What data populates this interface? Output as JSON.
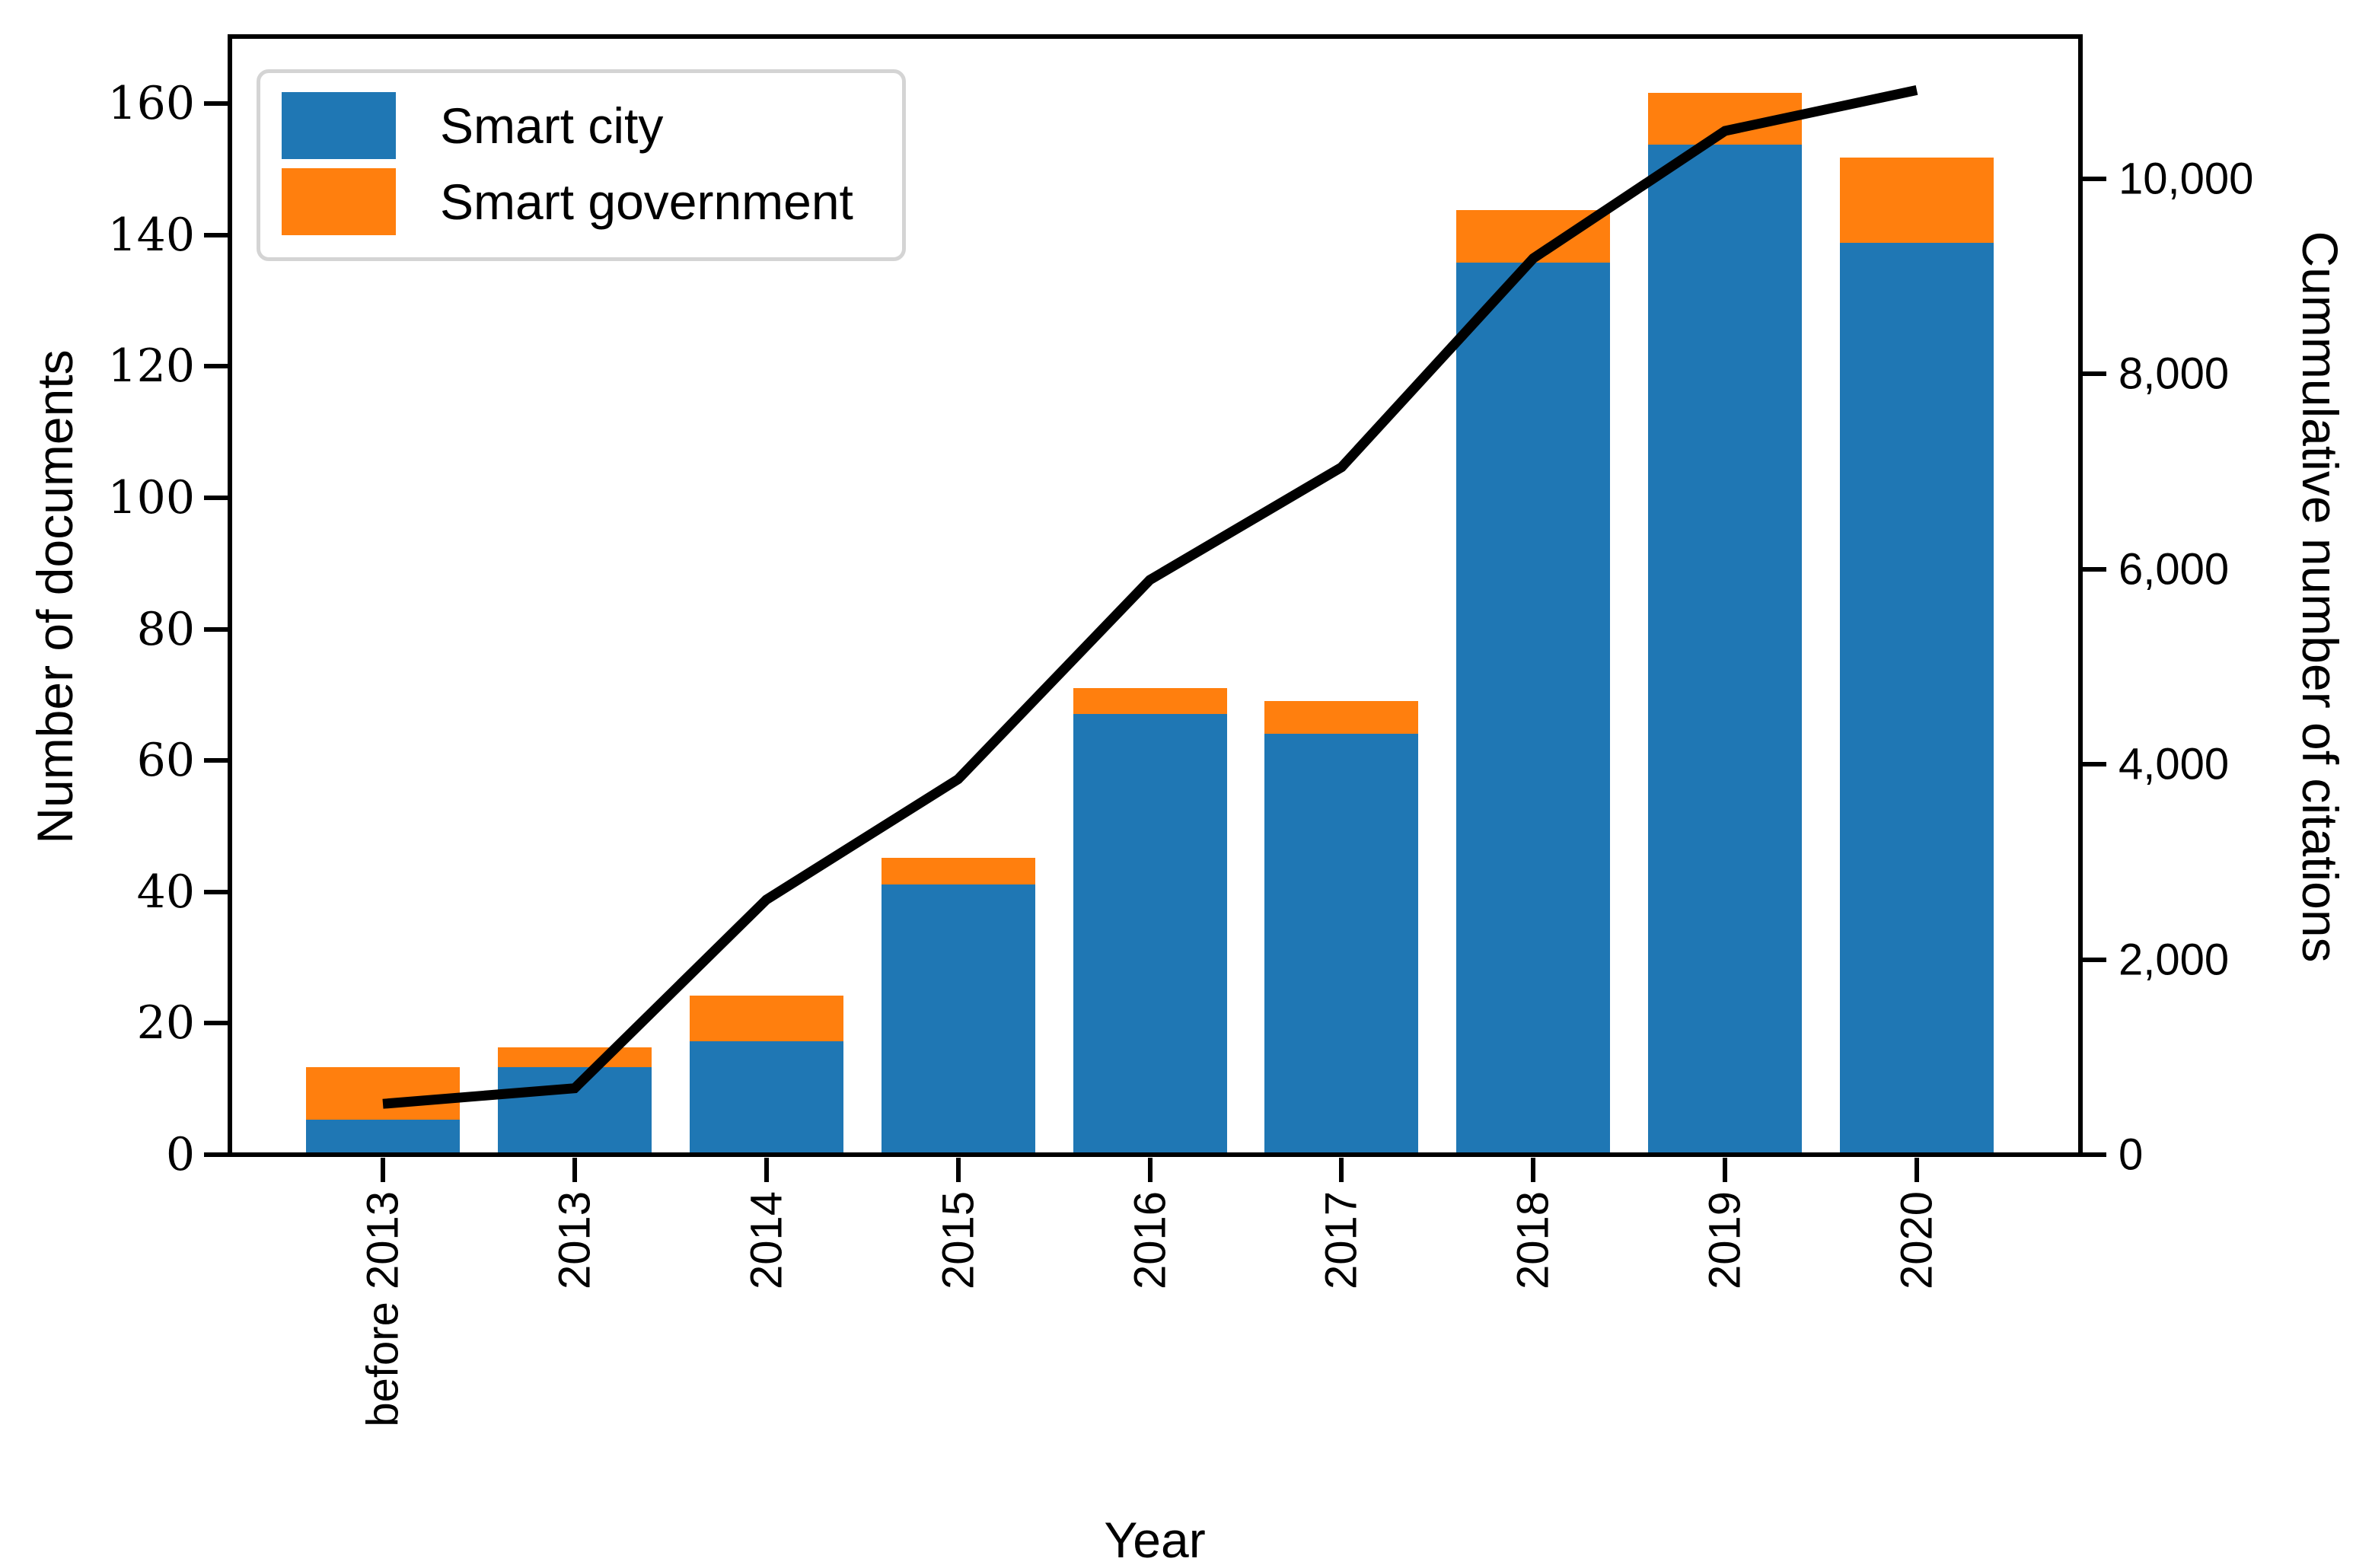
{
  "chart_data": {
    "type": "bar",
    "subtype": "stacked-bars-with-cumulative-line",
    "categories": [
      "before 2013",
      "2013",
      "2014",
      "2015",
      "2016",
      "2017",
      "2018",
      "2019",
      "2020"
    ],
    "series": [
      {
        "name": "Smart city",
        "type": "bar",
        "stacked": true,
        "axis": "left",
        "color": "#1f77b4",
        "values": [
          5,
          13,
          17,
          41,
          67,
          64,
          136,
          154,
          139
        ]
      },
      {
        "name": "Smart government",
        "type": "bar",
        "stacked": true,
        "axis": "left",
        "color": "#ff7f0e",
        "values": [
          8,
          3,
          7,
          4,
          4,
          5,
          8,
          8,
          13
        ]
      },
      {
        "name": "Cumulative citations line",
        "type": "line",
        "axis": "right",
        "color": "#000000",
        "values": [
          500,
          660,
          2600,
          3840,
          5890,
          7050,
          9200,
          10510,
          10930
        ]
      }
    ],
    "bar_totals": [
      13,
      16,
      24,
      45,
      71,
      69,
      144,
      162,
      152
    ],
    "title": "",
    "xlabel": "Year",
    "ylabel_left": "Number of documents",
    "ylabel_right": "Cummulative number of citations",
    "left_axis": {
      "range": [
        0,
        170.2
      ],
      "ticks": [
        0,
        20,
        40,
        60,
        80,
        100,
        120,
        140,
        160
      ],
      "tick_labels": [
        "0",
        "20",
        "40",
        "60",
        "80",
        "100",
        "120",
        "140",
        "160"
      ]
    },
    "right_axis": {
      "range": [
        0,
        11458
      ],
      "ticks": [
        0,
        2000,
        4000,
        6000,
        8000,
        10000
      ],
      "tick_labels": [
        "0",
        "2,000",
        "4,000",
        "6,000",
        "8,000",
        "10,000"
      ]
    },
    "legend": {
      "position": "upper left",
      "entries": [
        "Smart city",
        "Smart government"
      ]
    },
    "grid": false
  },
  "colors": {
    "smart_city": "#1f77b4",
    "smart_government": "#ff7f0e",
    "line": "#000000",
    "axis": "#000000",
    "legend_border": "#d4d4d4",
    "background": "#ffffff"
  }
}
